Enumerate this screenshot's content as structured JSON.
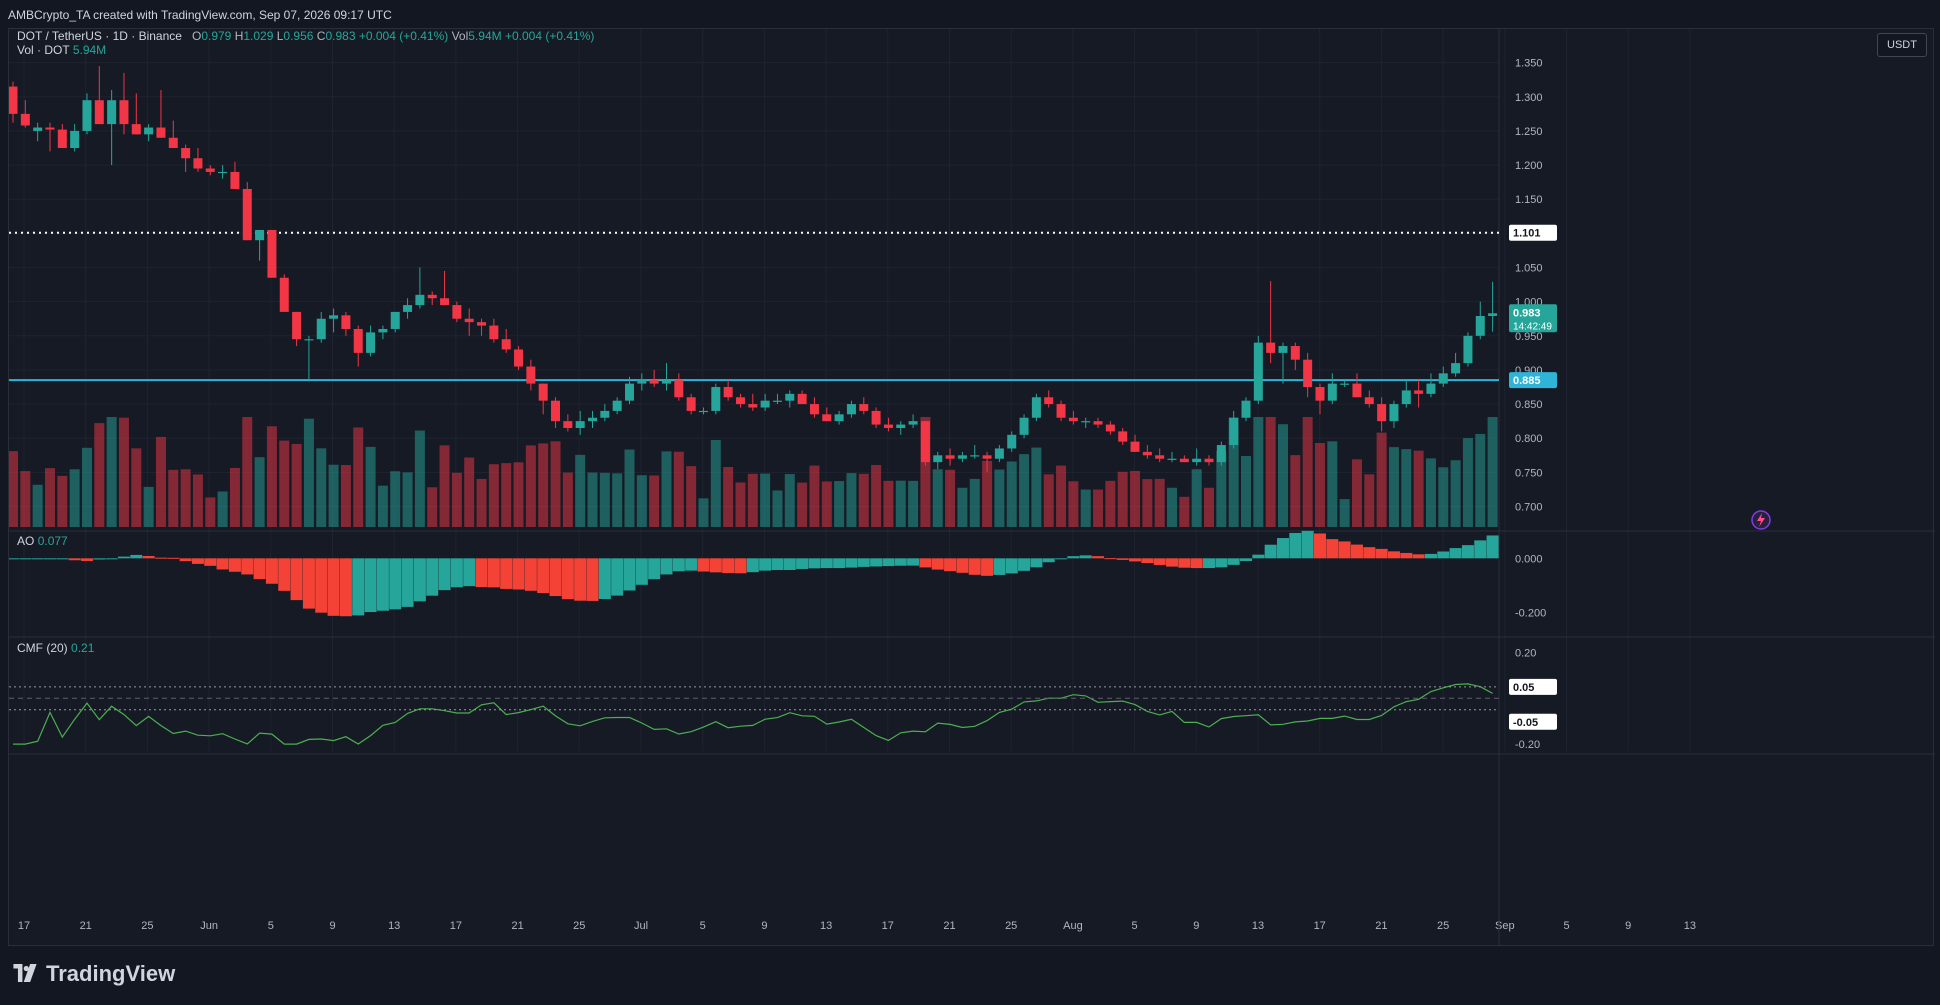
{
  "header": {
    "attribution": "AMBCrypto_TA created with TradingView.com, Sep 07, 2026 09:17 UTC"
  },
  "legend": {
    "symbol": "DOT / TetherUS · 1D · Binance",
    "o_label": "O",
    "o": "0.979",
    "h_label": "H",
    "h": "1.029",
    "l_label": "L",
    "l": "0.956",
    "c_label": "C",
    "c": "0.983",
    "change": "+0.004 (+0.41%)",
    "vol_label": "Vol",
    "vol": "5.94M",
    "vol_change": "+0.004 (+0.41%)",
    "vol_dot_label": "Vol · DOT",
    "vol_dot": "5.94M",
    "ao_label": "AO",
    "ao": "0.077",
    "cmf_label": "CMF (20)",
    "cmf": "0.21"
  },
  "currency_button": "USDT",
  "price_tags": {
    "dotted_level": "1.101",
    "last_price": "0.983",
    "countdown": "14:42:49",
    "support_level": "0.885",
    "cmf_upper": "0.05",
    "cmf_lower": "-0.05"
  },
  "footer": {
    "brand": "TradingView"
  },
  "colors": {
    "up": "#26a69a",
    "down": "#f23645",
    "support": "#2fb3d6",
    "cmf_line": "#4caf50"
  },
  "chart_data": {
    "type": "candlestick",
    "title": "DOT / TetherUS · 1D · Binance",
    "price_axis": {
      "ticks": [
        "1.350",
        "1.300",
        "1.250",
        "1.200",
        "1.150",
        "1.100",
        "1.050",
        "1.000",
        "0.950",
        "0.900",
        "0.850",
        "0.800",
        "0.750",
        "0.700"
      ],
      "range": [
        0.67,
        1.37
      ]
    },
    "time_axis": {
      "ticks": [
        "17",
        "21",
        "25",
        "Jun",
        "5",
        "9",
        "13",
        "17",
        "21",
        "25",
        "Jul",
        "5",
        "9",
        "13",
        "17",
        "21",
        "25",
        "Aug",
        "5",
        "9",
        "13",
        "17",
        "21",
        "25",
        "Sep",
        "5",
        "9",
        "13"
      ]
    },
    "horizontal_lines": [
      {
        "price": 1.101,
        "style": "dotted",
        "color": "#ffffff"
      },
      {
        "price": 0.885,
        "style": "solid",
        "color": "#2fb3d6"
      }
    ],
    "candles": [
      [
        1.315,
        1.322,
        1.262,
        1.275
      ],
      [
        1.275,
        1.295,
        1.255,
        1.258
      ],
      [
        1.25,
        1.262,
        1.235,
        1.255
      ],
      [
        1.255,
        1.262,
        1.22,
        1.252
      ],
      [
        1.252,
        1.26,
        1.225,
        1.225
      ],
      [
        1.225,
        1.26,
        1.22,
        1.25
      ],
      [
        1.25,
        1.305,
        1.245,
        1.295
      ],
      [
        1.295,
        1.345,
        1.26,
        1.26
      ],
      [
        1.26,
        1.31,
        1.2,
        1.295
      ],
      [
        1.295,
        1.335,
        1.245,
        1.26
      ],
      [
        1.26,
        1.305,
        1.245,
        1.245
      ],
      [
        1.245,
        1.26,
        1.235,
        1.255
      ],
      [
        1.255,
        1.31,
        1.24,
        1.24
      ],
      [
        1.24,
        1.265,
        1.225,
        1.225
      ],
      [
        1.225,
        1.23,
        1.19,
        1.21
      ],
      [
        1.21,
        1.225,
        1.19,
        1.195
      ],
      [
        1.195,
        1.2,
        1.185,
        1.19
      ],
      [
        1.19,
        1.2,
        1.18,
        1.19
      ],
      [
        1.19,
        1.205,
        1.165,
        1.165
      ],
      [
        1.165,
        1.175,
        1.09,
        1.09
      ],
      [
        1.09,
        1.105,
        1.06,
        1.105
      ],
      [
        1.105,
        1.105,
        1.035,
        1.035
      ],
      [
        1.035,
        1.04,
        0.985,
        0.985
      ],
      [
        0.985,
        0.985,
        0.935,
        0.945
      ],
      [
        0.945,
        0.95,
        0.885,
        0.945
      ],
      [
        0.945,
        0.985,
        0.94,
        0.975
      ],
      [
        0.975,
        0.99,
        0.955,
        0.98
      ],
      [
        0.98,
        0.985,
        0.95,
        0.96
      ],
      [
        0.96,
        0.965,
        0.905,
        0.925
      ],
      [
        0.925,
        0.965,
        0.92,
        0.955
      ],
      [
        0.955,
        0.965,
        0.945,
        0.96
      ],
      [
        0.96,
        0.985,
        0.955,
        0.985
      ],
      [
        0.985,
        1.005,
        0.975,
        0.995
      ],
      [
        0.995,
        1.05,
        0.99,
        1.01
      ],
      [
        1.01,
        1.015,
        0.995,
        1.005
      ],
      [
        1.005,
        1.045,
        0.995,
        0.995
      ],
      [
        0.995,
        1.0,
        0.97,
        0.975
      ],
      [
        0.975,
        0.99,
        0.95,
        0.97
      ],
      [
        0.97,
        0.975,
        0.95,
        0.965
      ],
      [
        0.965,
        0.975,
        0.94,
        0.945
      ],
      [
        0.945,
        0.96,
        0.925,
        0.93
      ],
      [
        0.93,
        0.935,
        0.9,
        0.905
      ],
      [
        0.905,
        0.915,
        0.87,
        0.88
      ],
      [
        0.88,
        0.88,
        0.835,
        0.855
      ],
      [
        0.855,
        0.86,
        0.815,
        0.825
      ],
      [
        0.825,
        0.835,
        0.81,
        0.815
      ],
      [
        0.815,
        0.84,
        0.805,
        0.825
      ],
      [
        0.825,
        0.84,
        0.815,
        0.83
      ],
      [
        0.83,
        0.85,
        0.825,
        0.84
      ],
      [
        0.84,
        0.86,
        0.835,
        0.855
      ],
      [
        0.855,
        0.89,
        0.85,
        0.88
      ],
      [
        0.88,
        0.895,
        0.87,
        0.885
      ],
      [
        0.885,
        0.9,
        0.875,
        0.88
      ],
      [
        0.88,
        0.91,
        0.87,
        0.885
      ],
      [
        0.885,
        0.895,
        0.855,
        0.86
      ],
      [
        0.86,
        0.865,
        0.835,
        0.84
      ],
      [
        0.84,
        0.845,
        0.835,
        0.84
      ],
      [
        0.84,
        0.88,
        0.835,
        0.875
      ],
      [
        0.875,
        0.885,
        0.855,
        0.86
      ],
      [
        0.86,
        0.865,
        0.845,
        0.85
      ],
      [
        0.85,
        0.865,
        0.84,
        0.845
      ],
      [
        0.845,
        0.865,
        0.84,
        0.855
      ],
      [
        0.855,
        0.865,
        0.85,
        0.855
      ],
      [
        0.855,
        0.87,
        0.845,
        0.865
      ],
      [
        0.865,
        0.87,
        0.85,
        0.85
      ],
      [
        0.85,
        0.86,
        0.83,
        0.835
      ],
      [
        0.835,
        0.845,
        0.825,
        0.825
      ],
      [
        0.825,
        0.84,
        0.82,
        0.835
      ],
      [
        0.835,
        0.855,
        0.83,
        0.85
      ],
      [
        0.85,
        0.86,
        0.835,
        0.84
      ],
      [
        0.84,
        0.845,
        0.815,
        0.82
      ],
      [
        0.82,
        0.83,
        0.81,
        0.815
      ],
      [
        0.815,
        0.825,
        0.805,
        0.82
      ],
      [
        0.82,
        0.835,
        0.815,
        0.825
      ],
      [
        0.825,
        0.825,
        0.76,
        0.765
      ],
      [
        0.765,
        0.78,
        0.755,
        0.775
      ],
      [
        0.775,
        0.785,
        0.76,
        0.77
      ],
      [
        0.77,
        0.78,
        0.765,
        0.775
      ],
      [
        0.775,
        0.79,
        0.77,
        0.775
      ],
      [
        0.775,
        0.78,
        0.75,
        0.77
      ],
      [
        0.77,
        0.79,
        0.765,
        0.785
      ],
      [
        0.785,
        0.81,
        0.78,
        0.805
      ],
      [
        0.805,
        0.835,
        0.8,
        0.83
      ],
      [
        0.83,
        0.865,
        0.825,
        0.86
      ],
      [
        0.86,
        0.87,
        0.845,
        0.85
      ],
      [
        0.85,
        0.855,
        0.825,
        0.83
      ],
      [
        0.83,
        0.84,
        0.82,
        0.825
      ],
      [
        0.825,
        0.83,
        0.815,
        0.825
      ],
      [
        0.825,
        0.83,
        0.815,
        0.82
      ],
      [
        0.82,
        0.825,
        0.805,
        0.81
      ],
      [
        0.81,
        0.815,
        0.79,
        0.795
      ],
      [
        0.795,
        0.805,
        0.78,
        0.78
      ],
      [
        0.78,
        0.79,
        0.77,
        0.775
      ],
      [
        0.775,
        0.785,
        0.765,
        0.77
      ],
      [
        0.77,
        0.78,
        0.765,
        0.77
      ],
      [
        0.77,
        0.775,
        0.765,
        0.765
      ],
      [
        0.765,
        0.785,
        0.76,
        0.77
      ],
      [
        0.77,
        0.775,
        0.76,
        0.765
      ],
      [
        0.765,
        0.795,
        0.76,
        0.79
      ],
      [
        0.79,
        0.84,
        0.785,
        0.83
      ],
      [
        0.83,
        0.86,
        0.825,
        0.855
      ],
      [
        0.855,
        0.95,
        0.85,
        0.94
      ],
      [
        0.94,
        1.03,
        0.91,
        0.925
      ],
      [
        0.925,
        0.94,
        0.88,
        0.935
      ],
      [
        0.935,
        0.94,
        0.9,
        0.915
      ],
      [
        0.915,
        0.925,
        0.86,
        0.875
      ],
      [
        0.875,
        0.88,
        0.835,
        0.855
      ],
      [
        0.855,
        0.895,
        0.85,
        0.88
      ],
      [
        0.88,
        0.885,
        0.875,
        0.88
      ],
      [
        0.88,
        0.895,
        0.86,
        0.86
      ],
      [
        0.86,
        0.87,
        0.845,
        0.85
      ],
      [
        0.85,
        0.86,
        0.81,
        0.825
      ],
      [
        0.825,
        0.855,
        0.815,
        0.85
      ],
      [
        0.85,
        0.885,
        0.845,
        0.87
      ],
      [
        0.87,
        0.885,
        0.845,
        0.865
      ],
      [
        0.865,
        0.895,
        0.86,
        0.88
      ],
      [
        0.88,
        0.905,
        0.875,
        0.895
      ],
      [
        0.895,
        0.925,
        0.89,
        0.91
      ],
      [
        0.91,
        0.955,
        0.905,
        0.95
      ],
      [
        0.95,
        1.0,
        0.945,
        0.979
      ],
      [
        0.979,
        1.029,
        0.956,
        0.983
      ]
    ],
    "volume_title": "Vol · DOT",
    "awesome_oscillator": {
      "name": "AO",
      "last": 0.077,
      "range": [
        -0.28,
        0.09
      ],
      "ticks": [
        "0.000",
        "-0.200"
      ]
    },
    "cmf": {
      "name": "CMF (20)",
      "last": 0.21,
      "range": [
        -0.23,
        0.25
      ],
      "ticks": [
        "0.20",
        "-0.20"
      ],
      "levels": [
        0.05,
        -0.05
      ]
    }
  }
}
